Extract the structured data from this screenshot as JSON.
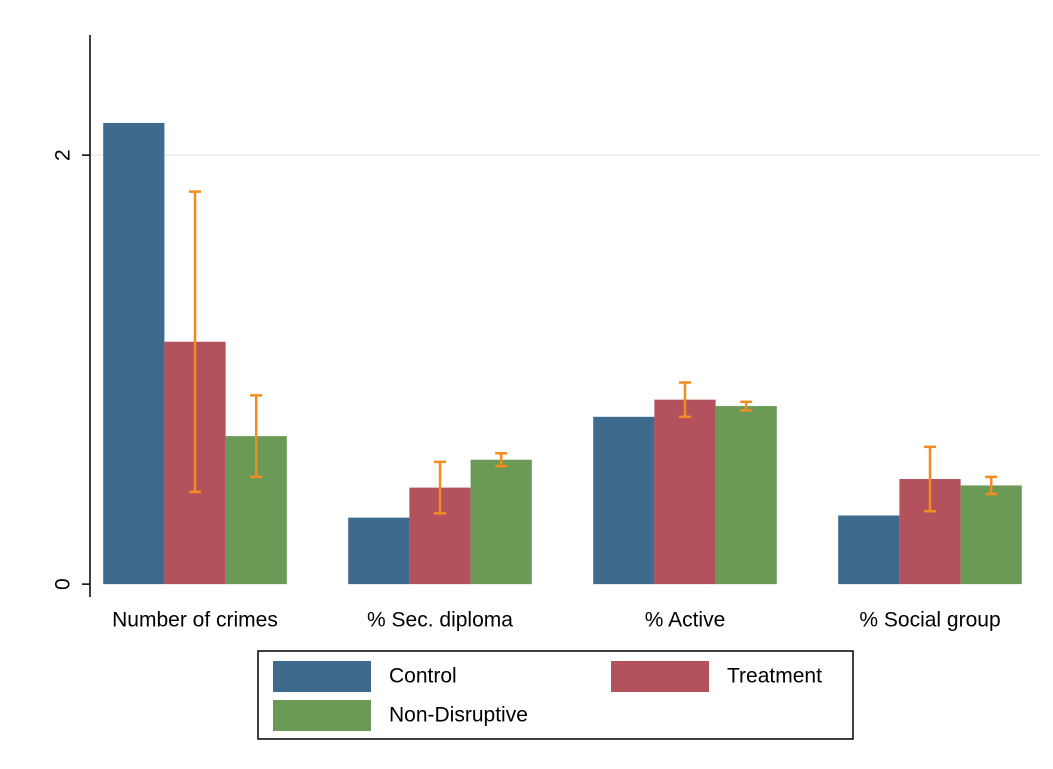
{
  "chart_data": {
    "type": "bar",
    "categories": [
      "Number of crimes",
      "% Sec. diploma",
      "% Active",
      "% Social group"
    ],
    "series": [
      {
        "name": "Control",
        "color": "#3e6a8e",
        "values": [
          2.15,
          0.31,
          0.78,
          0.32
        ]
      },
      {
        "name": "Treatment",
        "color": "#b3525c",
        "values": [
          1.13,
          0.45,
          0.86,
          0.49
        ],
        "errors": [
          0.7,
          0.12,
          0.08,
          0.15
        ]
      },
      {
        "name": "Non-Disruptive",
        "color": "#6b9a56",
        "values": [
          0.69,
          0.58,
          0.83,
          0.46
        ],
        "errors": [
          0.19,
          0.03,
          0.02,
          0.04
        ]
      }
    ],
    "error_color": "#f28c1e",
    "ylim": [
      -0.06,
      2.56
    ],
    "yticks": [
      0,
      2
    ],
    "grid": true,
    "legend": "bottom"
  }
}
